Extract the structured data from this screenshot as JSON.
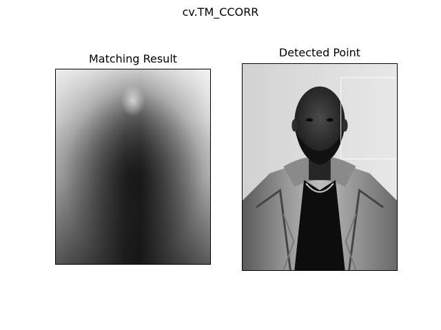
{
  "figure": {
    "suptitle": "cv.TM_CCORR"
  },
  "subplots": [
    {
      "title": "Matching Result",
      "content": "grayscale-heatmap"
    },
    {
      "title": "Detected Point",
      "content": "grayscale-portrait-photo"
    }
  ]
}
